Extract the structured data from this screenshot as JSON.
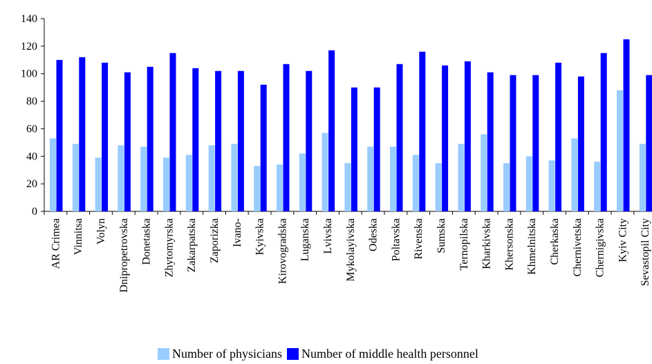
{
  "chart_data": {
    "type": "bar",
    "title": "",
    "xlabel": "",
    "ylabel": "",
    "ylim": [
      0,
      140
    ],
    "yticks": [
      0,
      20,
      40,
      60,
      80,
      100,
      120,
      140
    ],
    "grid": false,
    "legend_position": "bottom",
    "categories": [
      "AR Crimea",
      "Vinnitsa",
      "Volyn",
      "Dnipropetrovska",
      "Donetaska",
      "Zhytomyrska",
      "Zakarpatska",
      "Zaporizka",
      "Ivano-",
      "Kyivska",
      "Kirovogradska",
      "Luganska",
      "Lvivska",
      "Mykolayivska",
      "Odeska",
      "Poltavska",
      "Rivenska",
      "Sumska",
      "Ternopilska",
      "Kharkivska",
      "Khersonska",
      "Khmelnitska",
      "Cherkaska",
      "Chernivetska",
      "Chernigivska",
      "Kyiv City",
      "Sevastopil City"
    ],
    "series": [
      {
        "name": "Number of physicians",
        "color": "#99ccff",
        "values": [
          53,
          49,
          39,
          48,
          47,
          39,
          41,
          48,
          49,
          33,
          34,
          42,
          57,
          35,
          47,
          47,
          41,
          35,
          49,
          56,
          35,
          40,
          37,
          53,
          36,
          88,
          49
        ]
      },
      {
        "name": "Number of middle health personnel",
        "color": "#0000ff",
        "values": [
          110,
          112,
          108,
          101,
          105,
          115,
          104,
          102,
          102,
          92,
          107,
          102,
          117,
          90,
          90,
          107,
          116,
          106,
          109,
          101,
          99,
          99,
          108,
          98,
          115,
          125,
          99
        ]
      }
    ]
  }
}
